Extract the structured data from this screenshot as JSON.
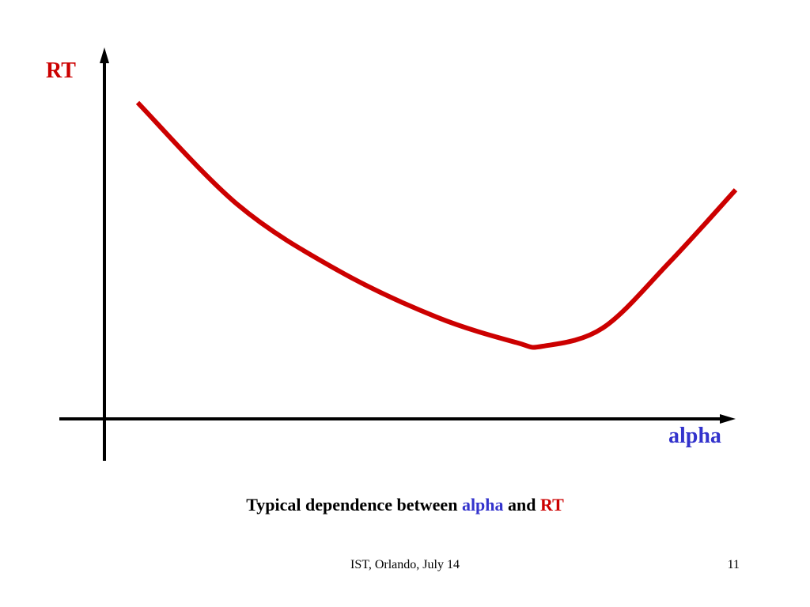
{
  "colors": {
    "curve": "#cc0000",
    "rt_text": "#cc0000",
    "alpha_text": "#3333cc",
    "axis": "#000000",
    "background": "#ffffff"
  },
  "chart_data": {
    "type": "line",
    "title": "",
    "xlabel": "alpha",
    "ylabel": "RT",
    "xlim": [
      0,
      1
    ],
    "ylim": [
      0,
      1
    ],
    "ticks": "none",
    "grid": false,
    "legend": "none",
    "series": [
      {
        "x": [
          0.05,
          0.2,
          0.35,
          0.5,
          0.62,
          0.66,
          0.75,
          0.85,
          0.95
        ],
        "y": [
          0.87,
          0.59,
          0.41,
          0.28,
          0.21,
          0.2,
          0.25,
          0.43,
          0.63
        ]
      }
    ]
  },
  "caption": {
    "prefix": "Typical dependence between ",
    "alpha": "alpha",
    "middle": " and ",
    "rt": "RT"
  },
  "footer": {
    "text": "IST, Orlando, July 14",
    "page_number": "11"
  }
}
